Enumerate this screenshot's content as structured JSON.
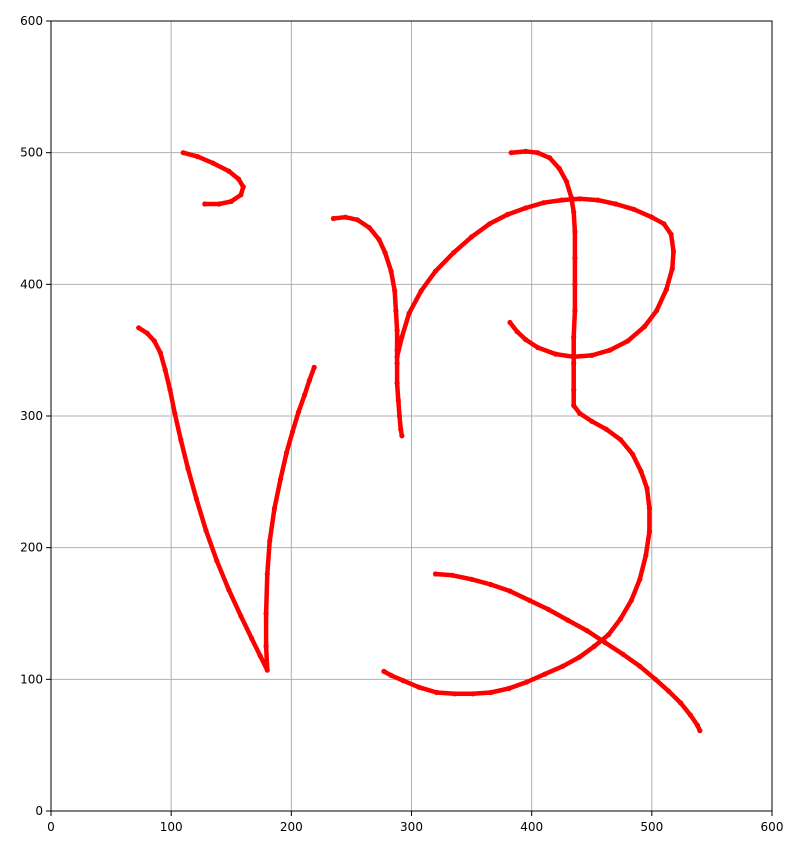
{
  "chart_data": {
    "type": "scatter",
    "title": "",
    "xlabel": "",
    "ylabel": "",
    "xlim": [
      0,
      600
    ],
    "ylim": [
      0,
      600
    ],
    "xticks": [
      "0",
      "100",
      "200",
      "300",
      "400",
      "500",
      "600"
    ],
    "yticks": [
      "0",
      "100",
      "200",
      "300",
      "400",
      "500",
      "600"
    ],
    "grid": true,
    "marker_color": "#ff0000",
    "series": [
      {
        "points": [
          [
            110,
            500
          ],
          [
            122,
            497
          ],
          [
            135,
            492
          ],
          [
            148,
            486
          ],
          [
            156,
            480
          ],
          [
            160,
            474
          ],
          [
            158,
            468
          ],
          [
            150,
            463
          ],
          [
            140,
            461
          ],
          [
            128,
            461
          ]
        ]
      },
      {
        "points": [
          [
            73,
            367
          ],
          [
            80,
            363
          ],
          [
            86,
            357
          ],
          [
            91,
            348
          ],
          [
            95,
            335
          ],
          [
            99,
            320
          ],
          [
            103,
            302
          ],
          [
            108,
            282
          ],
          [
            114,
            260
          ],
          [
            121,
            237
          ],
          [
            129,
            213
          ],
          [
            138,
            190
          ],
          [
            148,
            168
          ],
          [
            158,
            148
          ],
          [
            167,
            131
          ],
          [
            174,
            118
          ],
          [
            180,
            107
          ],
          [
            179,
            125
          ],
          [
            179,
            150
          ],
          [
            180,
            180
          ],
          [
            182,
            205
          ],
          [
            186,
            230
          ],
          [
            191,
            252
          ],
          [
            196,
            272
          ],
          [
            201,
            288
          ],
          [
            206,
            303
          ],
          [
            211,
            316
          ],
          [
            215,
            327
          ],
          [
            219,
            337
          ]
        ]
      },
      {
        "points": [
          [
            235,
            450
          ],
          [
            245,
            451
          ],
          [
            255,
            449
          ],
          [
            265,
            443
          ],
          [
            273,
            434
          ],
          [
            278,
            424
          ],
          [
            283,
            410
          ],
          [
            286,
            395
          ],
          [
            287,
            380
          ],
          [
            288,
            365
          ],
          [
            288,
            350
          ],
          [
            288,
            340
          ],
          [
            288,
            325
          ],
          [
            289,
            312
          ],
          [
            290,
            300
          ],
          [
            291,
            290
          ],
          [
            292,
            285
          ]
        ]
      },
      {
        "points": [
          [
            288,
            345
          ],
          [
            292,
            360
          ],
          [
            298,
            378
          ],
          [
            308,
            395
          ],
          [
            320,
            410
          ],
          [
            335,
            424
          ],
          [
            350,
            436
          ],
          [
            365,
            446
          ],
          [
            380,
            453
          ],
          [
            395,
            458
          ],
          [
            410,
            462
          ],
          [
            425,
            464
          ],
          [
            440,
            465
          ],
          [
            455,
            464
          ],
          [
            470,
            461
          ],
          [
            485,
            457
          ],
          [
            500,
            451
          ],
          [
            510,
            446
          ],
          [
            516,
            438
          ],
          [
            518,
            425
          ],
          [
            517,
            412
          ],
          [
            512,
            396
          ],
          [
            504,
            380
          ],
          [
            494,
            368
          ],
          [
            480,
            357
          ],
          [
            465,
            350
          ],
          [
            450,
            346
          ],
          [
            435,
            345
          ],
          [
            420,
            347
          ],
          [
            405,
            352
          ],
          [
            395,
            358
          ],
          [
            388,
            364
          ],
          [
            382,
            371
          ]
        ]
      },
      {
        "points": [
          [
            383,
            500
          ],
          [
            395,
            501
          ],
          [
            405,
            500
          ],
          [
            415,
            496
          ],
          [
            423,
            488
          ],
          [
            429,
            478
          ],
          [
            433,
            466
          ],
          [
            435,
            455
          ],
          [
            436,
            440
          ],
          [
            436,
            420
          ],
          [
            436,
            400
          ],
          [
            436,
            380
          ],
          [
            435,
            360
          ],
          [
            435,
            340
          ],
          [
            435,
            320
          ],
          [
            435,
            308
          ],
          [
            440,
            302
          ],
          [
            450,
            296
          ],
          [
            462,
            290
          ],
          [
            474,
            282
          ],
          [
            484,
            271
          ],
          [
            491,
            258
          ],
          [
            496,
            245
          ],
          [
            498,
            230
          ],
          [
            498,
            212
          ],
          [
            495,
            194
          ],
          [
            490,
            176
          ],
          [
            483,
            160
          ],
          [
            474,
            146
          ],
          [
            464,
            134
          ],
          [
            452,
            125
          ],
          [
            440,
            117
          ],
          [
            426,
            110
          ],
          [
            411,
            104
          ],
          [
            396,
            98
          ],
          [
            381,
            93
          ],
          [
            366,
            90
          ],
          [
            351,
            89
          ],
          [
            336,
            89
          ],
          [
            321,
            90
          ],
          [
            306,
            94
          ],
          [
            293,
            99
          ],
          [
            283,
            103
          ],
          [
            277,
            106
          ]
        ]
      },
      {
        "points": [
          [
            320,
            180
          ],
          [
            334,
            179
          ],
          [
            350,
            176
          ],
          [
            366,
            172
          ],
          [
            382,
            167
          ],
          [
            398,
            160
          ],
          [
            414,
            153
          ],
          [
            430,
            145
          ],
          [
            446,
            137
          ],
          [
            461,
            128
          ],
          [
            476,
            119
          ],
          [
            490,
            110
          ],
          [
            503,
            100
          ],
          [
            514,
            91
          ],
          [
            524,
            82
          ],
          [
            532,
            73
          ],
          [
            538,
            65
          ],
          [
            540,
            61
          ]
        ]
      }
    ]
  }
}
